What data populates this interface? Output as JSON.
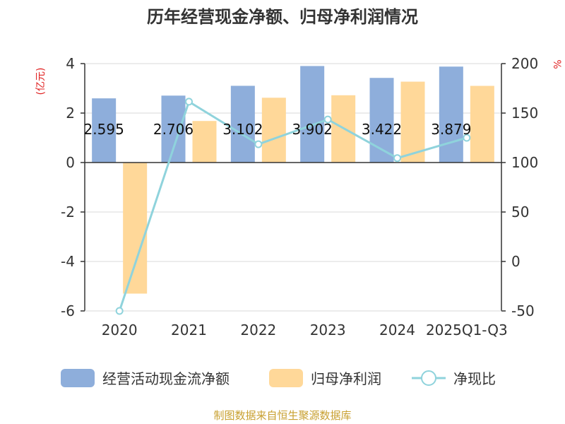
{
  "chart_data": {
    "type": "bar",
    "title": "历年经营现金净额、归母净利润情况",
    "y_left_unit": "(亿元)",
    "y_right_unit": "%",
    "categories": [
      "2020",
      "2021",
      "2022",
      "2023",
      "2024",
      "2025Q1-Q3"
    ],
    "ylim_left": [
      -6,
      4
    ],
    "ylim_right": [
      -50,
      200
    ],
    "yticks_left": [
      "4",
      "2",
      "0",
      "-2",
      "-4",
      "-6"
    ],
    "yticks_right": [
      "200",
      "150",
      "100",
      "50",
      "0",
      "-50"
    ],
    "series": [
      {
        "name": "经营活动现金流净额",
        "type": "bar",
        "axis": "left",
        "color": "#8eaedb",
        "values": [
          2.595,
          2.706,
          3.102,
          3.902,
          3.422,
          3.879
        ],
        "labels": [
          "2.595",
          "2.706",
          "3.102",
          "3.902",
          "3.422",
          "3.879"
        ]
      },
      {
        "name": "归母净利润",
        "type": "bar",
        "axis": "left",
        "color": "#ffd899",
        "values": [
          -5.3,
          1.68,
          2.62,
          2.72,
          3.27,
          3.1
        ]
      },
      {
        "name": "净现比",
        "type": "line",
        "axis": "right",
        "color": "#8fd3dc",
        "values": [
          -50,
          161.5,
          118.5,
          143.5,
          104.5,
          125
        ]
      }
    ],
    "legend_position": "bottom",
    "grid": "horizontal"
  },
  "footer": {
    "source": "制图数据来自恒生聚源数据库",
    "source_color": "#c8a030"
  }
}
